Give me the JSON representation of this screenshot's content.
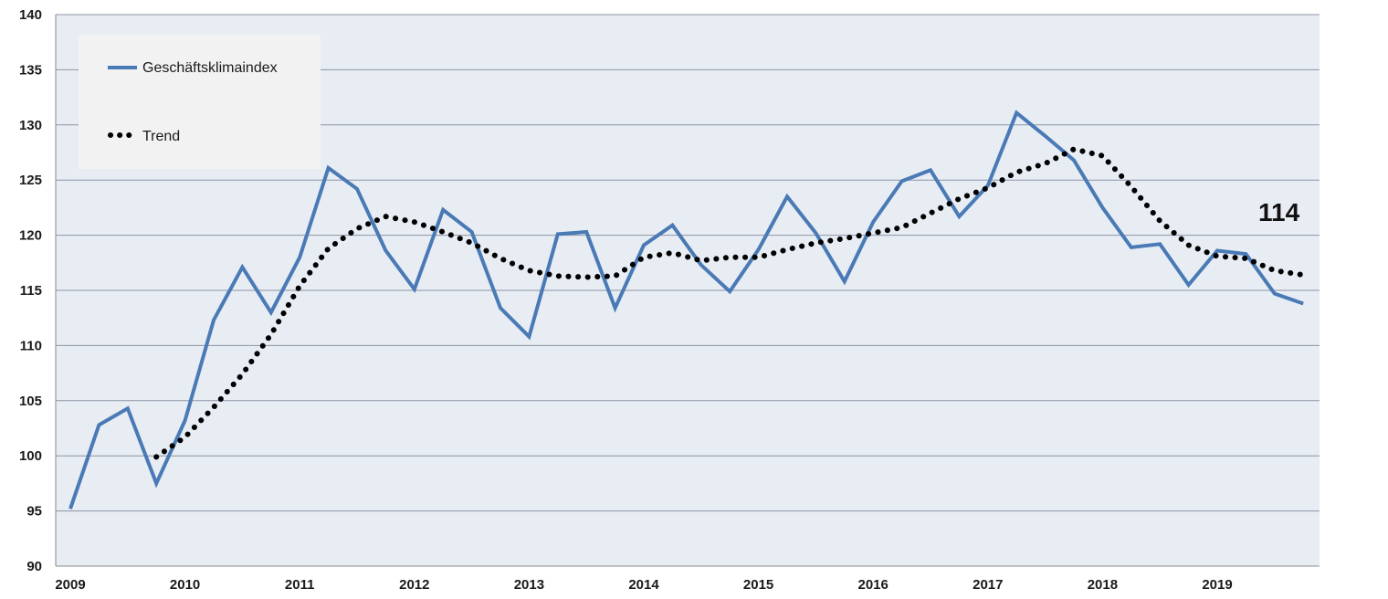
{
  "chart_data": {
    "type": "line",
    "x_labels": [
      "2009",
      "2010",
      "2011",
      "2012",
      "2013",
      "2014",
      "2015",
      "2016",
      "2017",
      "2018",
      "2019"
    ],
    "ylim": [
      90,
      140
    ],
    "y_ticks": [
      "90",
      "95",
      "100",
      "105",
      "110",
      "115",
      "120",
      "125",
      "130",
      "135",
      "140"
    ],
    "grid": true,
    "legend_position": "top-left",
    "series": [
      {
        "name": "Geschäftsklimaindex",
        "color": "#4a7ab5",
        "style": "solid",
        "points": [
          [
            0,
            95.2
          ],
          [
            1,
            102.8
          ],
          [
            2,
            104.3
          ],
          [
            3,
            97.5
          ],
          [
            4,
            103.2
          ],
          [
            5,
            112.3
          ],
          [
            6,
            117.1
          ],
          [
            7,
            113.0
          ],
          [
            8,
            118.0
          ],
          [
            9,
            126.1
          ],
          [
            10,
            124.2
          ],
          [
            11,
            118.6
          ],
          [
            12,
            115.1
          ],
          [
            13,
            122.3
          ],
          [
            14,
            120.3
          ],
          [
            15,
            113.4
          ],
          [
            16,
            110.8
          ],
          [
            17,
            120.1
          ],
          [
            18,
            120.3
          ],
          [
            19,
            113.4
          ],
          [
            20,
            119.1
          ],
          [
            21,
            120.9
          ],
          [
            22,
            117.3
          ],
          [
            23,
            114.9
          ],
          [
            24,
            118.7
          ],
          [
            25,
            123.5
          ],
          [
            26,
            120.2
          ],
          [
            27,
            115.8
          ],
          [
            28,
            121.2
          ],
          [
            29,
            124.9
          ],
          [
            30,
            125.9
          ],
          [
            31,
            121.7
          ],
          [
            32,
            124.5
          ],
          [
            33,
            131.1
          ],
          [
            34,
            129.0
          ],
          [
            35,
            126.8
          ],
          [
            36,
            122.5
          ],
          [
            37,
            118.9
          ],
          [
            38,
            119.2
          ],
          [
            39,
            115.5
          ],
          [
            40,
            118.6
          ],
          [
            41,
            118.3
          ],
          [
            42,
            114.7
          ],
          [
            43,
            113.8
          ]
        ]
      },
      {
        "name": "Trend",
        "color": "#000000",
        "style": "dotted",
        "points": [
          [
            3,
            99.9
          ],
          [
            4,
            101.7
          ],
          [
            5,
            104.4
          ],
          [
            6,
            107.4
          ],
          [
            7,
            111.0
          ],
          [
            8,
            115.4
          ],
          [
            9,
            118.8
          ],
          [
            10,
            120.6
          ],
          [
            11,
            121.7
          ],
          [
            12,
            121.2
          ],
          [
            13,
            120.3
          ],
          [
            14,
            119.3
          ],
          [
            15,
            117.9
          ],
          [
            16,
            116.8
          ],
          [
            17,
            116.3
          ],
          [
            18,
            116.2
          ],
          [
            19,
            116.3
          ],
          [
            20,
            118.0
          ],
          [
            21,
            118.4
          ],
          [
            22,
            117.7
          ],
          [
            23,
            118.0
          ],
          [
            24,
            118.0
          ],
          [
            25,
            118.7
          ],
          [
            26,
            119.3
          ],
          [
            27,
            119.7
          ],
          [
            28,
            120.2
          ],
          [
            29,
            120.7
          ],
          [
            30,
            122.0
          ],
          [
            31,
            123.3
          ],
          [
            32,
            124.3
          ],
          [
            33,
            125.7
          ],
          [
            34,
            126.5
          ],
          [
            35,
            127.8
          ],
          [
            36,
            127.2
          ],
          [
            37,
            124.4
          ],
          [
            38,
            121.3
          ],
          [
            39,
            119.1
          ],
          [
            40,
            118.1
          ],
          [
            41,
            117.9
          ],
          [
            42,
            116.8
          ],
          [
            43,
            116.4
          ]
        ]
      }
    ],
    "annotation": "114",
    "plot_background": "#e8edf4",
    "legend_background": "#f2f2f2",
    "grid_color": "#8c94a3"
  }
}
